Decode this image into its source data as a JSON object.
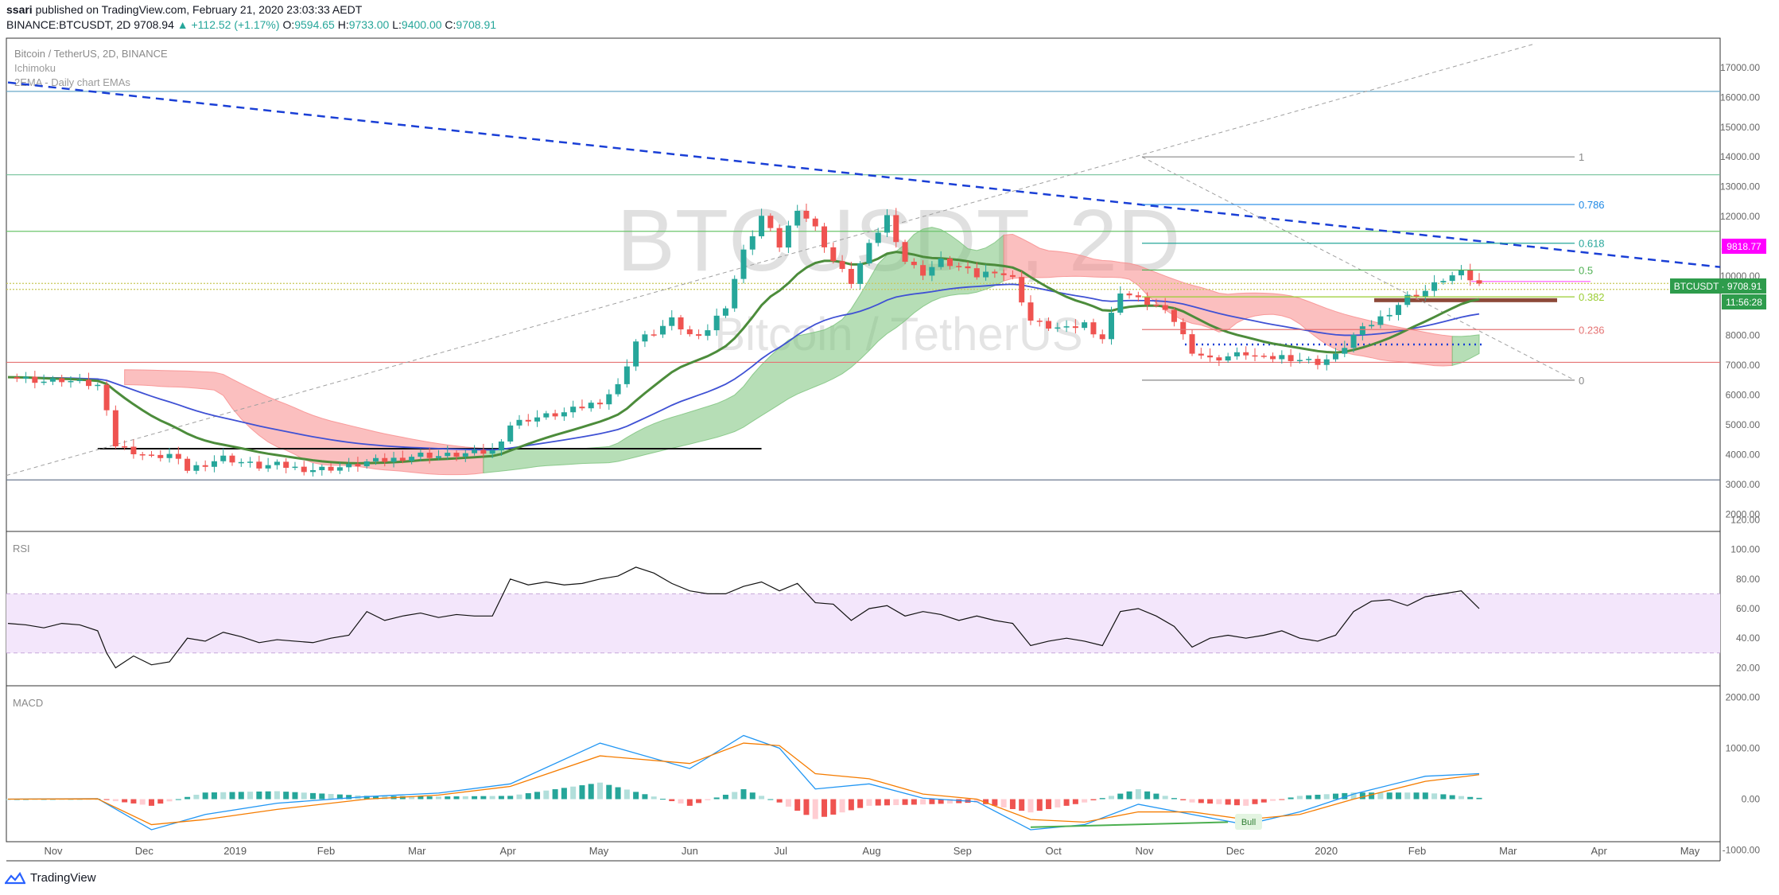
{
  "header": {
    "author": "ssari",
    "published_text": "published on TradingView.com, February 21, 2020 23:03:33 AEDT",
    "symbol": "BINANCE:BTCUSDT, 2D",
    "last": "9708.94",
    "change": "▲ +112.52 (+1.17%)",
    "o_label": "O:",
    "o_value": "9594.65",
    "h_label": "H:",
    "h_value": "9733.00",
    "l_label": "L:",
    "l_value": "9400.00",
    "c_label": "C:",
    "c_value": "9708.91"
  },
  "legend": {
    "title": "Bitcoin / TetherUS, 2D, BINANCE",
    "ichimoku": "Ichimoku",
    "ema": "2EMA - Daily chart EMAs"
  },
  "watermark": {
    "main": "BTCUSDT, 2D",
    "sub": "Bitcoin / TetherUS"
  },
  "tags": {
    "pink_price": "9818.77",
    "symbol_price": "BTCUSDT · 9708.91",
    "countdown": "11:56:28"
  },
  "panes": {
    "rsi": "RSI",
    "macd": "MACD"
  },
  "bull_label": "Bull",
  "footer": {
    "brand": "TradingView"
  },
  "colors": {
    "up": "#26a69a",
    "down": "#ef5350",
    "ema_slow": "#3f51d4",
    "ema_fast": "#4c8c3b",
    "cloud_bull": "#7ac27a",
    "cloud_bear": "#f88a8a",
    "trend": "#1a3fd6",
    "rsi_band": "#f3e6fb",
    "macd_line": "#2196f3",
    "signal_line": "#f57c00",
    "pink_tag": "#ff00ff",
    "symbol_tag": "#2e9c4c"
  },
  "chart_data": [
    {
      "type": "candlestick",
      "title": "Bitcoin / TetherUS, 2D, BINANCE",
      "xlabel": "",
      "ylabel": "",
      "x_ticks": [
        "Nov",
        "Dec",
        "2019",
        "Feb",
        "Mar",
        "Apr",
        "May",
        "Jun",
        "Jul",
        "Aug",
        "Sep",
        "Oct",
        "Nov",
        "Dec",
        "2020",
        "Feb",
        "Mar",
        "Apr",
        "May"
      ],
      "y_ticks": [
        "17000.00",
        "16000.00",
        "15000.00",
        "14000.00",
        "13000.00",
        "12000.00",
        "11000.00",
        "10000.00",
        "9000.00",
        "8000.00",
        "7000.00",
        "6000.00",
        "5000.00",
        "4000.00",
        "3000.00",
        "2000.00"
      ],
      "ylim": [
        1500,
        17800
      ],
      "close_path": [
        [
          0,
          6600
        ],
        [
          2,
          6550
        ],
        [
          4,
          6450
        ],
        [
          6,
          6500
        ],
        [
          8,
          6400
        ],
        [
          10,
          6300
        ],
        [
          11,
          5600
        ],
        [
          12,
          4300
        ],
        [
          14,
          4100
        ],
        [
          16,
          3900
        ],
        [
          18,
          4000
        ],
        [
          20,
          3500
        ],
        [
          22,
          3700
        ],
        [
          24,
          3900
        ],
        [
          26,
          3750
        ],
        [
          28,
          3600
        ],
        [
          30,
          3650
        ],
        [
          32,
          3550
        ],
        [
          34,
          3500
        ],
        [
          36,
          3550
        ],
        [
          38,
          3600
        ],
        [
          40,
          3750
        ],
        [
          42,
          3800
        ],
        [
          44,
          3900
        ],
        [
          46,
          4000
        ],
        [
          48,
          3950
        ],
        [
          50,
          4000
        ],
        [
          52,
          4050
        ],
        [
          54,
          4100
        ],
        [
          56,
          5000
        ],
        [
          58,
          5200
        ],
        [
          60,
          5300
        ],
        [
          62,
          5400
        ],
        [
          64,
          5600
        ],
        [
          66,
          5800
        ],
        [
          68,
          6300
        ],
        [
          70,
          7800
        ],
        [
          72,
          8100
        ],
        [
          74,
          8500
        ],
        [
          76,
          8000
        ],
        [
          78,
          8200
        ],
        [
          80,
          9000
        ],
        [
          82,
          10800
        ],
        [
          84,
          12000
        ],
        [
          86,
          11000
        ],
        [
          88,
          12300
        ],
        [
          90,
          11600
        ],
        [
          92,
          10500
        ],
        [
          94,
          9800
        ],
        [
          96,
          11000
        ],
        [
          98,
          12000
        ],
        [
          100,
          10500
        ],
        [
          102,
          10100
        ],
        [
          104,
          10500
        ],
        [
          106,
          10300
        ],
        [
          108,
          10000
        ],
        [
          110,
          10200
        ],
        [
          112,
          9900
        ],
        [
          114,
          8500
        ],
        [
          116,
          8300
        ],
        [
          118,
          8200
        ],
        [
          120,
          8400
        ],
        [
          122,
          7900
        ],
        [
          124,
          9500
        ],
        [
          126,
          9200
        ],
        [
          128,
          9000
        ],
        [
          130,
          8500
        ],
        [
          132,
          7500
        ],
        [
          134,
          7200
        ],
        [
          136,
          7300
        ],
        [
          138,
          7400
        ],
        [
          140,
          7200
        ],
        [
          142,
          7300
        ],
        [
          144,
          7200
        ],
        [
          146,
          7100
        ],
        [
          148,
          7300
        ],
        [
          150,
          8000
        ],
        [
          152,
          8400
        ],
        [
          154,
          8800
        ],
        [
          156,
          9300
        ],
        [
          158,
          9500
        ],
        [
          160,
          9900
        ],
        [
          162,
          10100
        ],
        [
          164,
          9700
        ]
      ],
      "horizontal_levels": [
        16200,
        13400,
        11500,
        9750,
        9550,
        7100,
        3150
      ],
      "support_line": 4200,
      "fibonacci": [
        {
          "label": "1",
          "price": 14000
        },
        {
          "label": "0.786",
          "price": 12400
        },
        {
          "label": "0.618",
          "price": 11100
        },
        {
          "label": "0.5",
          "price": 10200
        },
        {
          "label": "0.382",
          "price": 9300
        },
        {
          "label": "0.236",
          "price": 8200
        },
        {
          "label": "0",
          "price": 6500
        }
      ]
    },
    {
      "type": "line",
      "title": "RSI",
      "x": [
        0,
        2,
        4,
        6,
        8,
        10,
        11,
        12,
        14,
        16,
        18,
        20,
        22,
        24,
        26,
        28,
        30,
        32,
        34,
        36,
        38,
        40,
        42,
        44,
        46,
        48,
        50,
        52,
        54,
        56,
        58,
        60,
        62,
        64,
        66,
        68,
        70,
        72,
        74,
        76,
        78,
        80,
        82,
        84,
        86,
        88,
        90,
        92,
        94,
        96,
        98,
        100,
        102,
        104,
        106,
        108,
        110,
        112,
        114,
        116,
        118,
        120,
        122,
        124,
        126,
        128,
        130,
        132,
        134,
        136,
        138,
        140,
        142,
        144,
        146,
        148,
        150,
        152,
        154,
        156,
        158,
        160,
        162,
        164
      ],
      "values": [
        50,
        49,
        47,
        50,
        49,
        45,
        30,
        20,
        28,
        22,
        24,
        40,
        38,
        44,
        41,
        37,
        39,
        38,
        37,
        40,
        42,
        58,
        52,
        55,
        57,
        54,
        56,
        55,
        55,
        80,
        76,
        78,
        76,
        77,
        80,
        82,
        88,
        84,
        77,
        72,
        70,
        70,
        75,
        78,
        72,
        77,
        64,
        63,
        52,
        60,
        62,
        55,
        58,
        56,
        52,
        55,
        52,
        50,
        35,
        38,
        40,
        38,
        35,
        58,
        60,
        55,
        48,
        34,
        40,
        42,
        40,
        42,
        45,
        40,
        38,
        42,
        58,
        65,
        66,
        62,
        68,
        70,
        72,
        60
      ],
      "ylim": [
        10,
        110
      ],
      "band": [
        30,
        70
      ],
      "y_ticks": [
        "120.00",
        "100.00",
        "80.00",
        "60.00",
        "40.00",
        "20.00"
      ]
    },
    {
      "type": "line",
      "title": "MACD",
      "x": [
        0,
        10,
        16,
        22,
        30,
        40,
        48,
        56,
        66,
        76,
        82,
        86,
        90,
        96,
        102,
        108,
        114,
        120,
        126,
        132,
        138,
        144,
        150,
        158,
        164
      ],
      "series": [
        {
          "values": [
            0,
            10,
            -600,
            -300,
            -80,
            50,
            120,
            300,
            1100,
            600,
            1250,
            1000,
            200,
            300,
            20,
            -50,
            -600,
            -500,
            -100,
            -300,
            -500,
            -250,
            100,
            450,
            500
          ]
        },
        {
          "values": [
            0,
            5,
            -500,
            -400,
            -200,
            0,
            80,
            250,
            850,
            700,
            1100,
            1050,
            500,
            400,
            100,
            0,
            -400,
            -450,
            -250,
            -250,
            -400,
            -300,
            0,
            350,
            480
          ]
        }
      ],
      "ylim": [
        -1100,
        2100
      ],
      "y_ticks": [
        "2000.00",
        "1000.00",
        "0.00",
        "-1000.00"
      ]
    }
  ]
}
